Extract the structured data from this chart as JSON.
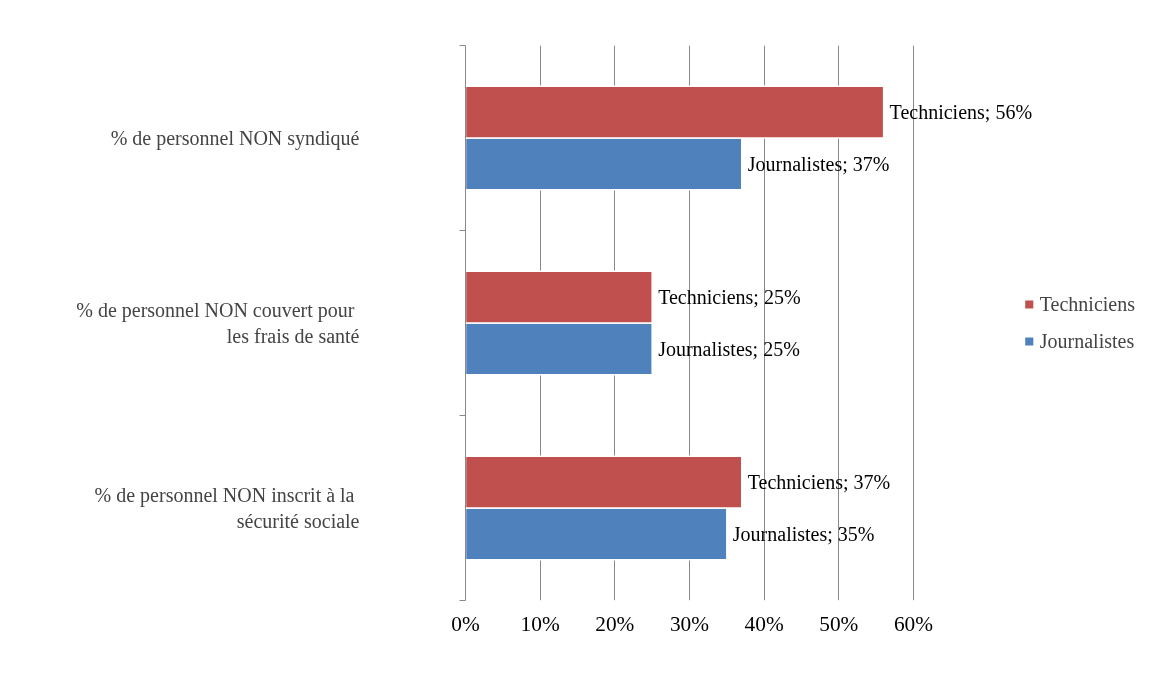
{
  "chart_data": {
    "type": "bar",
    "orientation": "horizontal",
    "categories": [
      "% de personnel NON syndiqué",
      "% de personnel NON  couvert pour les frais de santé",
      "% de personnel NON inscrit  à la sécurité sociale"
    ],
    "series": [
      {
        "name": "Journalistes",
        "color": "#4f81bd",
        "values": [
          37,
          25,
          35
        ],
        "value_labels": [
          "Journalistes; 37%",
          "Journalistes; 25%",
          "Journalistes; 35%"
        ]
      },
      {
        "name": "Techniciens",
        "color": "#c0504d",
        "values": [
          56,
          25,
          37
        ],
        "value_labels": [
          "Techniciens; 56%",
          "Techniciens; 25%",
          "Techniciens; 37%"
        ]
      }
    ],
    "xlim": [
      0,
      60
    ],
    "xticks": [
      {
        "value": 0,
        "label": "0%"
      },
      {
        "value": 10,
        "label": "10%"
      },
      {
        "value": 20,
        "label": "20%"
      },
      {
        "value": 30,
        "label": "30%"
      },
      {
        "value": 40,
        "label": "40%"
      },
      {
        "value": 50,
        "label": "50%"
      },
      {
        "value": 60,
        "label": "60%"
      }
    ],
    "grid": "x",
    "legend": "right"
  }
}
